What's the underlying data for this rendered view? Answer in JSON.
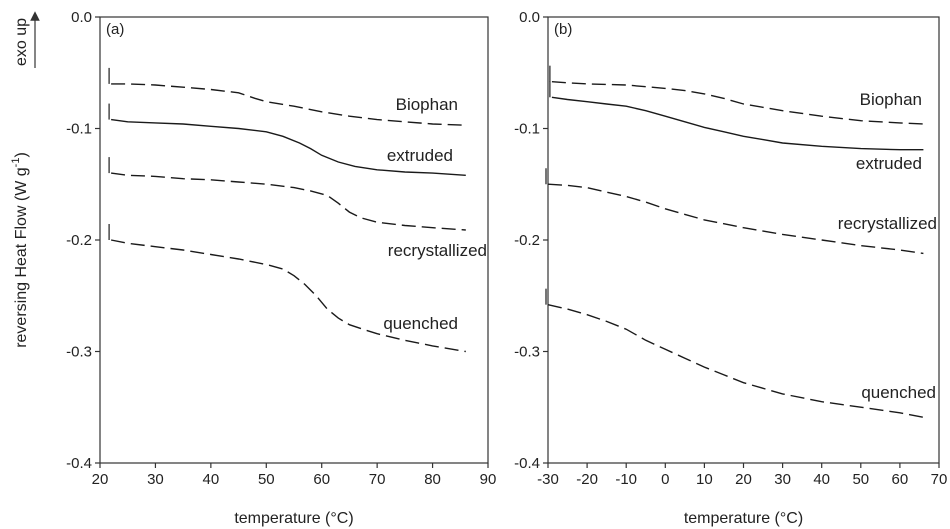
{
  "y_axis_label": "reversing Heat Flow (W g",
  "y_axis_unit_sup": "-1",
  "y_axis_close": ")",
  "exo_label": "exo up",
  "chart_data": [
    {
      "type": "line",
      "panel": "(a)",
      "xlabel": "temperature (°C)",
      "xlim": [
        20,
        90
      ],
      "ylim": [
        -0.4,
        0.0
      ],
      "x_ticks": [
        20,
        30,
        40,
        50,
        60,
        70,
        80,
        90
      ],
      "y_ticks": [
        0.0,
        -0.1,
        -0.2,
        -0.3,
        -0.4
      ],
      "y_tick_labels": [
        "0.0",
        "-0.1",
        "-0.2",
        "-0.3",
        "-0.4"
      ],
      "series": [
        {
          "name": "Biophan",
          "style": "dashed",
          "x": [
            22,
            25,
            30,
            35,
            40,
            45,
            48,
            50,
            55,
            60,
            65,
            70,
            75,
            80,
            86
          ],
          "y": [
            -0.06,
            -0.06,
            -0.061,
            -0.063,
            -0.065,
            -0.068,
            -0.073,
            -0.076,
            -0.08,
            -0.085,
            -0.089,
            -0.092,
            -0.094,
            -0.096,
            -0.097
          ]
        },
        {
          "name": "extruded",
          "style": "solid",
          "x": [
            22,
            25,
            30,
            35,
            40,
            45,
            50,
            53,
            56,
            58,
            60,
            63,
            66,
            70,
            75,
            80,
            86
          ],
          "y": [
            -0.092,
            -0.094,
            -0.095,
            -0.096,
            -0.098,
            -0.1,
            -0.103,
            -0.107,
            -0.113,
            -0.118,
            -0.124,
            -0.13,
            -0.134,
            -0.137,
            -0.139,
            -0.14,
            -0.142
          ]
        },
        {
          "name": "recrystallized",
          "style": "dashed",
          "x": [
            22,
            25,
            30,
            35,
            40,
            45,
            50,
            55,
            58,
            61,
            63,
            65,
            67,
            70,
            75,
            80,
            86
          ],
          "y": [
            -0.14,
            -0.142,
            -0.143,
            -0.145,
            -0.146,
            -0.148,
            -0.15,
            -0.153,
            -0.156,
            -0.16,
            -0.167,
            -0.175,
            -0.18,
            -0.184,
            -0.187,
            -0.189,
            -0.191
          ]
        },
        {
          "name": "quenched",
          "style": "dashed",
          "x": [
            22,
            25,
            30,
            35,
            40,
            45,
            50,
            53,
            55,
            57,
            59,
            61,
            63,
            65,
            68,
            70,
            75,
            80,
            86
          ],
          "y": [
            -0.2,
            -0.203,
            -0.206,
            -0.209,
            -0.213,
            -0.217,
            -0.222,
            -0.226,
            -0.232,
            -0.24,
            -0.25,
            -0.262,
            -0.27,
            -0.276,
            -0.281,
            -0.284,
            -0.29,
            -0.295,
            -0.3
          ]
        }
      ]
    },
    {
      "type": "line",
      "panel": "(b)",
      "xlabel": "temperature (°C)",
      "xlim": [
        -30,
        70
      ],
      "ylim": [
        -0.4,
        0.0
      ],
      "x_ticks": [
        -30,
        -20,
        -10,
        0,
        10,
        20,
        30,
        40,
        50,
        60,
        70
      ],
      "y_ticks": [
        0.0,
        -0.1,
        -0.2,
        -0.3,
        -0.4
      ],
      "y_tick_labels": [
        "0.0",
        "-0.1",
        "-0.2",
        "-0.3",
        "-0.4"
      ],
      "series": [
        {
          "name": "Biophan",
          "style": "dashed",
          "x": [
            -29,
            -25,
            -20,
            -10,
            0,
            5,
            10,
            15,
            20,
            30,
            40,
            50,
            60,
            66
          ],
          "y": [
            -0.058,
            -0.059,
            -0.06,
            -0.061,
            -0.064,
            -0.066,
            -0.069,
            -0.073,
            -0.078,
            -0.084,
            -0.089,
            -0.093,
            -0.095,
            -0.096
          ]
        },
        {
          "name": "extruded",
          "style": "solid",
          "x": [
            -29,
            -25,
            -20,
            -15,
            -10,
            -5,
            0,
            5,
            10,
            15,
            20,
            25,
            30,
            40,
            50,
            60,
            66
          ],
          "y": [
            -0.072,
            -0.074,
            -0.076,
            -0.078,
            -0.08,
            -0.084,
            -0.089,
            -0.094,
            -0.099,
            -0.103,
            -0.107,
            -0.11,
            -0.113,
            -0.116,
            -0.118,
            -0.119,
            -0.119
          ]
        },
        {
          "name": "recrystallized",
          "style": "dashed",
          "x": [
            -30,
            -25,
            -20,
            -15,
            -10,
            -5,
            0,
            5,
            10,
            20,
            30,
            40,
            50,
            60,
            66
          ],
          "y": [
            -0.15,
            -0.151,
            -0.153,
            -0.157,
            -0.161,
            -0.166,
            -0.172,
            -0.177,
            -0.182,
            -0.189,
            -0.195,
            -0.2,
            -0.205,
            -0.209,
            -0.212
          ]
        },
        {
          "name": "quenched",
          "style": "dashed",
          "x": [
            -30,
            -25,
            -20,
            -15,
            -10,
            -5,
            0,
            5,
            10,
            15,
            20,
            30,
            40,
            50,
            60,
            66
          ],
          "y": [
            -0.258,
            -0.262,
            -0.267,
            -0.273,
            -0.28,
            -0.29,
            -0.298,
            -0.306,
            -0.314,
            -0.321,
            -0.328,
            -0.338,
            -0.345,
            -0.35,
            -0.355,
            -0.359
          ]
        }
      ]
    }
  ]
}
